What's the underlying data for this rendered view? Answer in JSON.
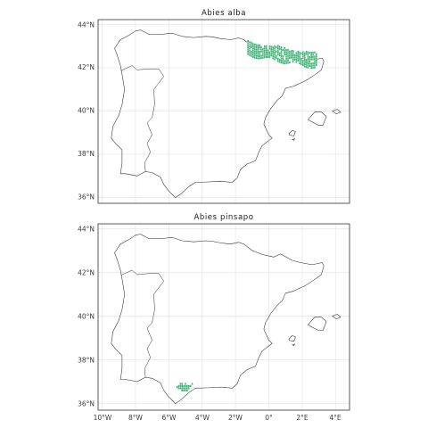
{
  "panels": [
    {
      "title": "Abies alba",
      "y_ticks": [
        "44°N",
        "42°N",
        "40°N",
        "38°N",
        "36°N"
      ],
      "distribution": "northeastern Iberia (Pyrenees range), approx. 1.2°W to 2.8°E, 41.9°N to 43.2°N"
    },
    {
      "title": "Abies pinsapo",
      "y_ticks": [
        "44°N",
        "42°N",
        "40°N",
        "38°N",
        "36°N"
      ],
      "distribution": "southern Iberia (Serranía de Ronda), approx. 5.5°W to 4.6°W, 36.5°N to 36.9°N"
    }
  ],
  "x_ticks": [
    "10°W",
    "8°W",
    "6°W",
    "4°W",
    "2°W",
    "0°",
    "2°E",
    "4°E"
  ],
  "colors": {
    "presence": "#3bb273",
    "coast": "#2b2b2b",
    "grid": "#e6e6e6",
    "frame": "#333333"
  }
}
